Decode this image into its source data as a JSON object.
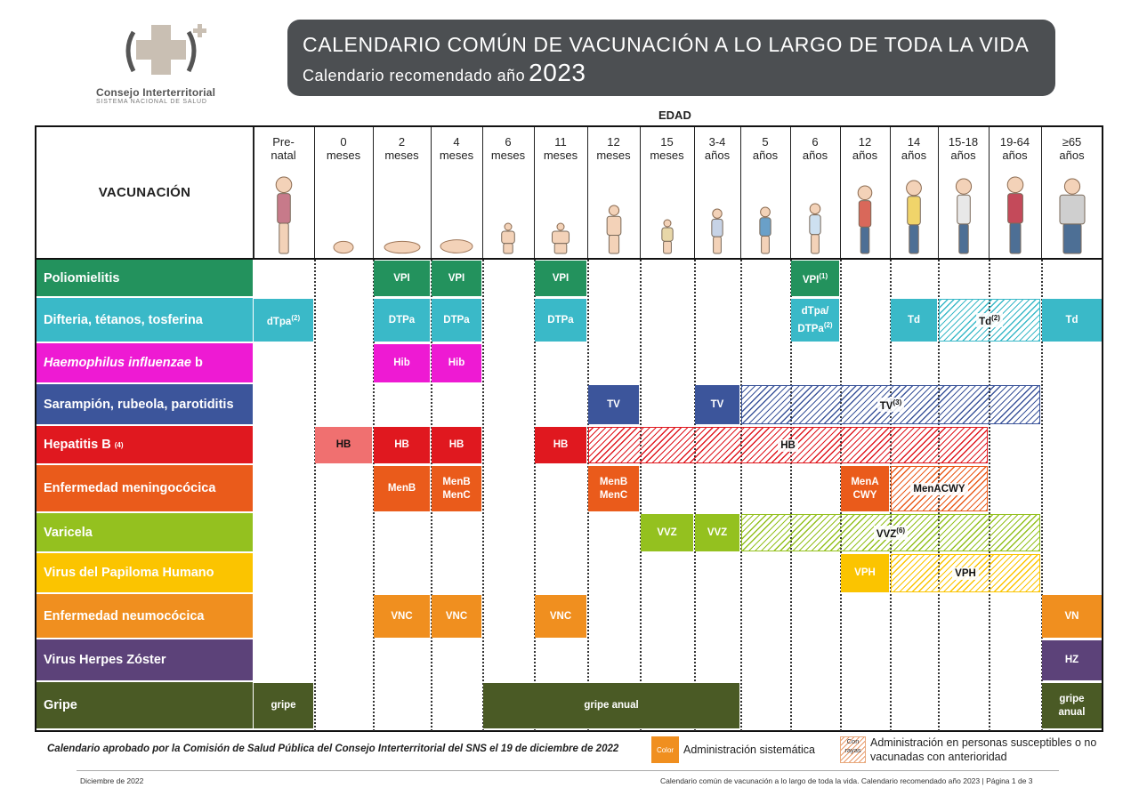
{
  "header": {
    "logo_name": "Consejo Interterritorial",
    "logo_sub": "SISTEMA NACIONAL DE SALUD",
    "title": "CALENDARIO COMÚN DE VACUNACIÓN A LO LARGO DE TODA LA VIDA",
    "subtitle": "Calendario recomendado año",
    "year": "2023"
  },
  "table": {
    "edad_label": "EDAD",
    "vacunacion_label": "VACUNACIÓN",
    "ages": [
      [
        "Pre-",
        "natal"
      ],
      [
        "0",
        "meses"
      ],
      [
        "2",
        "meses"
      ],
      [
        "4",
        "meses"
      ],
      [
        "6",
        "meses"
      ],
      [
        "11",
        "meses"
      ],
      [
        "12",
        "meses"
      ],
      [
        "15",
        "meses"
      ],
      [
        "3-4",
        "años"
      ],
      [
        "5",
        "años"
      ],
      [
        "6",
        "años"
      ],
      [
        "12",
        "años"
      ],
      [
        "14",
        "años"
      ],
      [
        "15-18",
        "años"
      ],
      [
        "19-64",
        "años"
      ],
      [
        "≥65",
        "años"
      ]
    ],
    "vaccines": [
      {
        "name": "Poliomielitis",
        "color": "#23925d"
      },
      {
        "name": "Difteria, tétanos, tosferina",
        "color": "#3ab9c8"
      },
      {
        "name_italic": "Haemophilus influenzae",
        "name_suffix": " b",
        "color": "#ee1ad3"
      },
      {
        "name": "Sarampión, rubeola, parotiditis",
        "color": "#3c559b"
      },
      {
        "name": "Hepatitis B",
        "sup": "(4)",
        "color": "#e0181f"
      },
      {
        "name": "Enfermedad meningocócica",
        "color": "#ea5b1b"
      },
      {
        "name": "Varicela",
        "color": "#94c11f"
      },
      {
        "name": "Virus del Papiloma Humano",
        "color": "#fbc400"
      },
      {
        "name": "Enfermedad neumocócica",
        "color": "#f08f1f"
      },
      {
        "name": "Virus Herpes Zóster",
        "color": "#5c4279"
      },
      {
        "name": "Gripe",
        "color": "#4a5a25"
      }
    ],
    "cells": [
      {
        "row": 0,
        "from": 2,
        "to": 2,
        "text": "VPI"
      },
      {
        "row": 0,
        "from": 3,
        "to": 3,
        "text": "VPI"
      },
      {
        "row": 0,
        "from": 5,
        "to": 5,
        "text": "VPI"
      },
      {
        "row": 0,
        "from": 10,
        "to": 10,
        "text": "VPI",
        "sup": "(1)"
      },
      {
        "row": 1,
        "from": 0,
        "to": 0,
        "text": "dTpa",
        "sup": "(2)"
      },
      {
        "row": 1,
        "from": 2,
        "to": 2,
        "text": "DTPa"
      },
      {
        "row": 1,
        "from": 3,
        "to": 3,
        "text": "DTPa"
      },
      {
        "row": 1,
        "from": 5,
        "to": 5,
        "text": "DTPa"
      },
      {
        "row": 1,
        "from": 10,
        "to": 10,
        "text": "dTpa/",
        "text2": "DTPa",
        "sup": "(2)"
      },
      {
        "row": 1,
        "from": 12,
        "to": 12,
        "text": "Td"
      },
      {
        "row": 1,
        "from": 13,
        "to": 14,
        "text": "Td",
        "sup": "(2)",
        "hatched": true
      },
      {
        "row": 1,
        "from": 15,
        "to": 15,
        "text": "Td"
      },
      {
        "row": 2,
        "from": 2,
        "to": 2,
        "text": "Hib"
      },
      {
        "row": 2,
        "from": 3,
        "to": 3,
        "text": "Hib"
      },
      {
        "row": 3,
        "from": 6,
        "to": 6,
        "text": "TV"
      },
      {
        "row": 3,
        "from": 8,
        "to": 8,
        "text": "TV"
      },
      {
        "row": 3,
        "from": 9,
        "to": 14,
        "text": "TV",
        "sup": "(3)",
        "hatched": true
      },
      {
        "row": 4,
        "from": 1,
        "to": 1,
        "text": "HB",
        "light": "#f07070",
        "dark": true
      },
      {
        "row": 4,
        "from": 2,
        "to": 2,
        "text": "HB"
      },
      {
        "row": 4,
        "from": 3,
        "to": 3,
        "text": "HB"
      },
      {
        "row": 4,
        "from": 5,
        "to": 5,
        "text": "HB"
      },
      {
        "row": 4,
        "from": 6,
        "to": 13,
        "text": "HB",
        "hatched": true
      },
      {
        "row": 5,
        "from": 2,
        "to": 2,
        "text": "MenB"
      },
      {
        "row": 5,
        "from": 3,
        "to": 3,
        "text": "MenB",
        "text2": "MenC"
      },
      {
        "row": 5,
        "from": 6,
        "to": 6,
        "text": "MenB",
        "text2": "MenC"
      },
      {
        "row": 5,
        "from": 11,
        "to": 11,
        "text": "MenA",
        "text2": "CWY"
      },
      {
        "row": 5,
        "from": 12,
        "to": 13,
        "text": "MenACWY",
        "hatched": true
      },
      {
        "row": 6,
        "from": 7,
        "to": 7,
        "text": "VVZ"
      },
      {
        "row": 6,
        "from": 8,
        "to": 8,
        "text": "VVZ"
      },
      {
        "row": 6,
        "from": 9,
        "to": 14,
        "text": "VVZ",
        "sup": "(6)",
        "hatched": true
      },
      {
        "row": 7,
        "from": 11,
        "to": 11,
        "text": "VPH"
      },
      {
        "row": 7,
        "from": 12,
        "to": 14,
        "text": "VPH",
        "hatched": true
      },
      {
        "row": 8,
        "from": 2,
        "to": 2,
        "text": "VNC"
      },
      {
        "row": 8,
        "from": 3,
        "to": 3,
        "text": "VNC"
      },
      {
        "row": 8,
        "from": 5,
        "to": 5,
        "text": "VNC"
      },
      {
        "row": 8,
        "from": 15,
        "to": 15,
        "text": "VN"
      },
      {
        "row": 9,
        "from": 15,
        "to": 15,
        "text": "HZ"
      },
      {
        "row": 10,
        "from": 0,
        "to": 0,
        "text": "gripe"
      },
      {
        "row": 10,
        "from": 4,
        "to": 8,
        "text": "gripe anual"
      },
      {
        "row": 10,
        "from": 15,
        "to": 15,
        "text": "gripe",
        "text2": "anual"
      }
    ]
  },
  "footer": {
    "approval_note": "Calendario aprobado por la Comisión de Salud Pública del Consejo Interterritorial del SNS el 19 de diciembre de 2022",
    "legend_color_label": "Color",
    "legend_color_text": "Administración sistemática",
    "legend_stripes_label_1": "Con",
    "legend_stripes_label_2": "rayas",
    "legend_stripes_text": "Administración en personas susceptibles o no vacunadas con anterioridad",
    "date": "Diciembre de 2022",
    "page_info": "Calendario común de vacunación a lo largo de toda la vida. Calendario recomendado año 2023  |  Página 1 de 3"
  }
}
